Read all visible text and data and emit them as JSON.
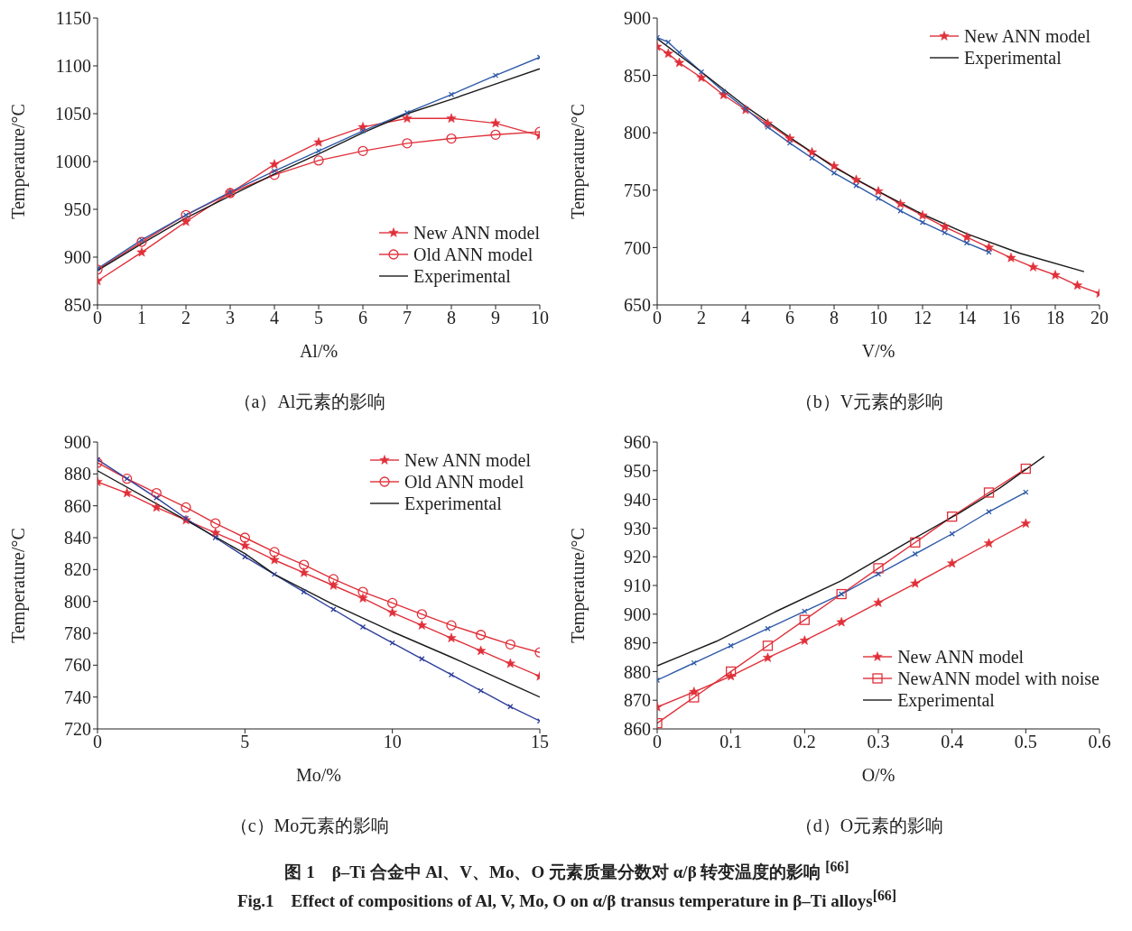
{
  "chart_data": [
    {
      "type": "line",
      "xlabel": "Al/%",
      "ylabel": "Temperature/°C",
      "xlim": [
        0,
        10
      ],
      "xticks": [
        0,
        1,
        2,
        3,
        4,
        5,
        6,
        7,
        8,
        9,
        10
      ],
      "ylim": [
        850,
        1150
      ],
      "yticks": [
        850,
        900,
        950,
        1000,
        1050,
        1100,
        1150
      ],
      "grid": false,
      "legend": "bottom right",
      "annotations": [
        "（a）Al元素的影响"
      ],
      "series": [
        {
          "name": "New ANN model",
          "color": "#e0303a",
          "marker": "star",
          "x": [
            0,
            1,
            2,
            3,
            4,
            5,
            6,
            7,
            8,
            9,
            10
          ],
          "values": [
            875,
            905,
            937,
            967,
            997,
            1020,
            1036,
            1045,
            1045,
            1040,
            1027
          ]
        },
        {
          "name": "Old ANN model",
          "color": "#e0303a",
          "marker": "circle",
          "x": [
            0,
            1,
            2,
            3,
            4,
            5,
            6,
            7,
            8,
            9,
            10
          ],
          "values": [
            887,
            916,
            944,
            967,
            986,
            1001,
            1011,
            1019,
            1024,
            1028,
            1031
          ]
        },
        {
          "color": "#2e5aa8",
          "marker": "cross",
          "x": [
            0,
            1,
            2,
            3,
            4,
            5,
            6,
            7,
            8,
            9,
            10
          ],
          "values": [
            888,
            918,
            944,
            968,
            990,
            1011,
            1032,
            1051,
            1070,
            1090,
            1109
          ]
        },
        {
          "name": "Experimental",
          "color": "#1a1a1a",
          "marker": "none",
          "x": [
            0,
            1,
            2,
            3,
            4,
            5,
            6,
            7,
            8,
            9,
            10
          ],
          "values": [
            886,
            914,
            941,
            964,
            987,
            1008,
            1030,
            1050,
            1065,
            1081,
            1097
          ]
        }
      ]
    },
    {
      "type": "line",
      "xlabel": "V/%",
      "ylabel": "Temperature/°C",
      "xlim": [
        0,
        20
      ],
      "xticks": [
        0,
        2,
        4,
        6,
        8,
        10,
        12,
        14,
        16,
        18,
        20
      ],
      "ylim": [
        650,
        900
      ],
      "yticks": [
        650,
        700,
        750,
        800,
        850,
        900
      ],
      "grid": false,
      "legend": "top right",
      "annotations": [
        "（b）V元素的影响"
      ],
      "series": [
        {
          "name": "New ANN model",
          "color": "#e0303a",
          "marker": "star",
          "x": [
            0,
            0.5,
            1,
            2,
            3,
            4,
            5,
            6,
            7,
            8,
            9,
            10,
            11,
            12,
            13,
            14,
            15,
            16,
            17,
            18,
            19,
            20
          ],
          "values": [
            875,
            869,
            861,
            848,
            833,
            820,
            808,
            795,
            783,
            771,
            759,
            749,
            738,
            728,
            718,
            709,
            700,
            691,
            683,
            676,
            667,
            660
          ]
        },
        {
          "color": "#2e5aa8",
          "marker": "cross",
          "x": [
            0,
            0.5,
            1,
            2,
            3,
            4,
            5,
            6,
            7,
            8,
            9,
            10,
            11,
            12,
            13,
            14,
            15
          ],
          "values": [
            883,
            879,
            870,
            853,
            836,
            821,
            805,
            791,
            778,
            765,
            754,
            743,
            732,
            722,
            713,
            704,
            696
          ]
        },
        {
          "name": "Experimental",
          "color": "#1a1a1a",
          "marker": "none",
          "x": [
            0,
            2,
            4,
            6,
            8,
            10,
            12,
            14,
            16.4,
            19.3
          ],
          "values": [
            882,
            853,
            823,
            796,
            770,
            749,
            729,
            712,
            695,
            679
          ]
        }
      ]
    },
    {
      "type": "line",
      "xlabel": "Mo/%",
      "ylabel": "Temperature/°C",
      "xlim": [
        0,
        15
      ],
      "xticks": [
        0,
        5,
        10,
        15
      ],
      "ylim": [
        720,
        900
      ],
      "yticks": [
        720,
        740,
        760,
        780,
        800,
        820,
        840,
        860,
        880,
        900
      ],
      "grid": false,
      "legend": "top right",
      "annotations": [
        "（c）Mo元素的影响"
      ],
      "series": [
        {
          "name": "New ANN model",
          "color": "#e0303a",
          "marker": "star",
          "x": [
            0,
            1,
            2,
            3,
            4,
            5,
            6,
            7,
            8,
            9,
            10,
            11,
            12,
            13,
            14,
            15
          ],
          "values": [
            875,
            868,
            859,
            851,
            843,
            835,
            826,
            818,
            810,
            802,
            793,
            785,
            777,
            769,
            761,
            753
          ]
        },
        {
          "name": "Old ANN model",
          "color": "#e0303a",
          "marker": "circle",
          "x": [
            0,
            1,
            2,
            3,
            4,
            5,
            6,
            7,
            8,
            9,
            10,
            11,
            12,
            13,
            14,
            15
          ],
          "values": [
            887,
            877,
            868,
            859,
            849,
            840,
            831,
            823,
            814,
            806,
            799,
            792,
            785,
            779,
            773,
            768
          ]
        },
        {
          "color": "#2e3f9a",
          "marker": "cross",
          "x": [
            0,
            1,
            2,
            3,
            4,
            5,
            6,
            7,
            8,
            9,
            10,
            11,
            12,
            13,
            14,
            15
          ],
          "values": [
            889,
            877,
            865,
            852,
            840,
            828,
            817,
            806,
            795,
            784,
            774,
            764,
            754,
            744,
            734,
            725
          ]
        },
        {
          "name": "Experimental",
          "color": "#1a1a1a",
          "marker": "none",
          "x": [
            0,
            3,
            5,
            6,
            8,
            10,
            12,
            15
          ],
          "values": [
            882,
            851,
            830,
            817,
            798,
            781,
            765,
            740
          ]
        }
      ]
    },
    {
      "type": "line",
      "xlabel": "O/%",
      "ylabel": "Temperature/°C",
      "xlim": [
        0,
        0.6
      ],
      "xticks": [
        0,
        0.1,
        0.2,
        0.3,
        0.4,
        0.5,
        0.6
      ],
      "ylim": [
        860,
        960
      ],
      "yticks": [
        860,
        870,
        880,
        890,
        900,
        910,
        920,
        930,
        940,
        950,
        960
      ],
      "grid": false,
      "legend": "bottom right",
      "annotations": [
        "（d）O元素的影响",
        "图 1　β–Ti 合金中 Al、V、Mo、O 元素质量分数对 α/β 转变温度的影响 $^{[66]}$",
        "Fig.1　Effect of compositions of Al, V, Mo, O on α/β transus temperature in β–Ti alloys$^{[66]}$"
      ],
      "series": [
        {
          "name": "New ANN model",
          "color": "#e0303a",
          "marker": "star",
          "x": [
            0,
            0.05,
            0.1,
            0.15,
            0.2,
            0.25,
            0.3,
            0.35,
            0.4,
            0.45,
            0.5
          ],
          "values": [
            867.6,
            872.9,
            878.4,
            884.8,
            890.8,
            897.2,
            904,
            910.7,
            917.7,
            924.7,
            931.6
          ]
        },
        {
          "name": "NewANN model with noise",
          "color": "#e0303a",
          "marker": "square",
          "x": [
            0,
            0.05,
            0.1,
            0.15,
            0.2,
            0.25,
            0.3,
            0.35,
            0.4,
            0.45,
            0.5
          ],
          "values": [
            862,
            871,
            880,
            889,
            898,
            907,
            916,
            925,
            934,
            942.4,
            950.7
          ]
        },
        {
          "color": "#2e5aa8",
          "marker": "cross",
          "x": [
            0,
            0.05,
            0.1,
            0.15,
            0.2,
            0.25,
            0.3,
            0.35,
            0.4,
            0.45,
            0.5
          ],
          "values": [
            877,
            883,
            889,
            895,
            901,
            907,
            914,
            921,
            928,
            935.7,
            942.5
          ]
        },
        {
          "name": "Experimental",
          "color": "#1a1a1a",
          "marker": "none",
          "x": [
            0,
            0.08,
            0.16,
            0.25,
            0.35,
            0.41,
            0.465,
            0.525
          ],
          "values": [
            882,
            890.5,
            900.8,
            911.7,
            926.6,
            935.3,
            944,
            955
          ]
        }
      ]
    }
  ]
}
